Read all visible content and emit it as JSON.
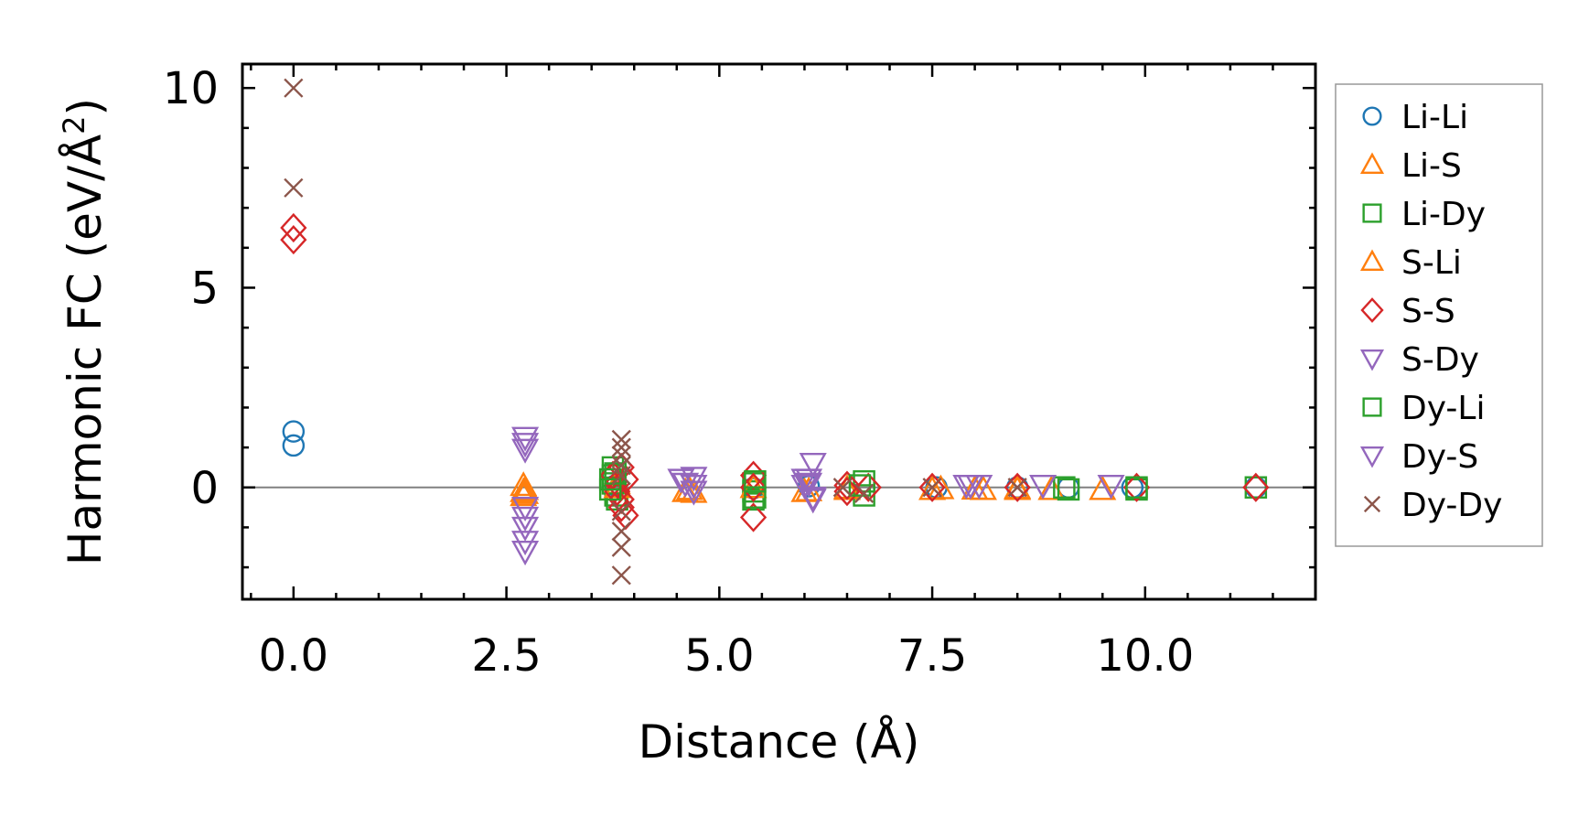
{
  "chart_data": {
    "type": "scatter",
    "title": "",
    "xlabel": "Distance (Å)",
    "ylabel_main": "Harmonic FC (eV/Å",
    "ylabel_sup": "2",
    "ylabel_close": ")",
    "xlim": [
      -0.6,
      12.0
    ],
    "ylim": [
      -2.8,
      10.6
    ],
    "xticks": [
      0.0,
      2.5,
      5.0,
      7.5,
      10.0
    ],
    "xtick_labels": [
      "0.0",
      "2.5",
      "5.0",
      "7.5",
      "10.0"
    ],
    "yticks": [
      0,
      5,
      10
    ],
    "ytick_labels": [
      "0",
      "5",
      "10"
    ],
    "zero_line": true,
    "grid": false,
    "legend_position": "right-outside",
    "series": [
      {
        "name": "Li-Li",
        "marker": "circle",
        "color": "#1f77b4",
        "x": [
          0.0,
          0.0,
          3.78,
          5.4,
          6.05,
          7.55,
          8.5,
          9.1,
          9.85,
          11.3
        ],
        "y": [
          1.4,
          1.05,
          0.05,
          -0.02,
          0.03,
          0.0,
          0.0,
          0.0,
          0.0,
          0.0
        ]
      },
      {
        "name": "Li-S",
        "marker": "triangle-up",
        "color": "#ff7f0e",
        "x": [
          2.7,
          2.7,
          2.7,
          3.8,
          4.6,
          4.7,
          6.0,
          6.5,
          7.5,
          8.1,
          8.5,
          8.9,
          9.5
        ],
        "y": [
          0.05,
          -0.1,
          -0.2,
          0.1,
          -0.1,
          -0.12,
          -0.1,
          -0.05,
          -0.05,
          -0.05,
          -0.05,
          -0.05,
          -0.05
        ]
      },
      {
        "name": "Li-Dy",
        "marker": "square",
        "color": "#2ca02c",
        "x": [
          3.75,
          3.75,
          3.75,
          3.78,
          3.8,
          5.4,
          5.4,
          5.4,
          6.7,
          6.7,
          9.1,
          9.9,
          11.3
        ],
        "y": [
          0.5,
          0.3,
          0.1,
          -0.2,
          -0.3,
          0.1,
          -0.1,
          -0.3,
          0.15,
          -0.2,
          -0.05,
          -0.05,
          0.0
        ]
      },
      {
        "name": "S-Li",
        "marker": "triangle-up",
        "color": "#ff7f0e",
        "x": [
          2.72,
          2.72,
          3.8,
          4.65,
          5.4,
          6.05,
          6.5,
          7.6,
          8.0,
          8.5
        ],
        "y": [
          -0.05,
          -0.15,
          0.0,
          -0.05,
          0.0,
          -0.08,
          -0.02,
          -0.03,
          -0.04,
          -0.02
        ]
      },
      {
        "name": "S-S",
        "marker": "diamond",
        "color": "#d62728",
        "x": [
          0.0,
          0.0,
          3.75,
          3.8,
          3.8,
          3.85,
          3.85,
          3.85,
          3.9,
          3.9,
          5.4,
          5.4,
          5.4,
          6.5,
          6.5,
          6.75,
          7.5,
          8.5,
          9.9,
          11.3
        ],
        "y": [
          6.5,
          6.2,
          0.3,
          0.1,
          -0.1,
          0.5,
          -0.3,
          -0.5,
          -0.7,
          0.2,
          0.3,
          0.0,
          -0.75,
          0.05,
          -0.1,
          0.0,
          0.0,
          0.0,
          0.0,
          0.0
        ]
      },
      {
        "name": "S-Dy",
        "marker": "triangle-down",
        "color": "#9467bd",
        "x": [
          2.72,
          2.72,
          2.72,
          2.72,
          2.72,
          2.72,
          2.72,
          2.72,
          4.55,
          4.7,
          4.7,
          6.0,
          6.05,
          6.1,
          6.1,
          7.9,
          8.05
        ],
        "y": [
          1.25,
          1.1,
          0.95,
          -0.5,
          -0.75,
          -1.0,
          -1.35,
          -1.6,
          0.2,
          0.25,
          -0.1,
          0.2,
          0.1,
          0.6,
          -0.25,
          0.05,
          0.05
        ]
      },
      {
        "name": "Dy-Li",
        "marker": "square",
        "color": "#2ca02c",
        "x": [
          3.72,
          3.72,
          3.78,
          5.42,
          5.42,
          6.65,
          9.05,
          9.9
        ],
        "y": [
          0.2,
          -0.05,
          0.35,
          0.15,
          -0.25,
          0.05,
          0.0,
          0.0
        ]
      },
      {
        "name": "Dy-S",
        "marker": "triangle-down",
        "color": "#9467bd",
        "x": [
          4.6,
          4.7,
          6.0,
          6.05,
          6.1,
          7.95,
          8.8,
          9.6
        ],
        "y": [
          0.1,
          0.05,
          0.05,
          0.2,
          -0.3,
          0.05,
          0.05,
          0.05
        ]
      },
      {
        "name": "Dy-Dy",
        "marker": "x",
        "color": "#8c564b",
        "x": [
          0.0,
          0.0,
          3.85,
          3.85,
          3.85,
          3.85,
          3.85,
          3.85,
          3.85,
          3.85,
          3.85,
          6.45,
          6.7,
          7.5,
          8.5
        ],
        "y": [
          10.0,
          7.5,
          1.2,
          1.0,
          0.8,
          0.55,
          0.3,
          -0.6,
          -1.1,
          -1.5,
          -2.2,
          0.0,
          -0.15,
          0.0,
          0.0
        ]
      }
    ]
  }
}
